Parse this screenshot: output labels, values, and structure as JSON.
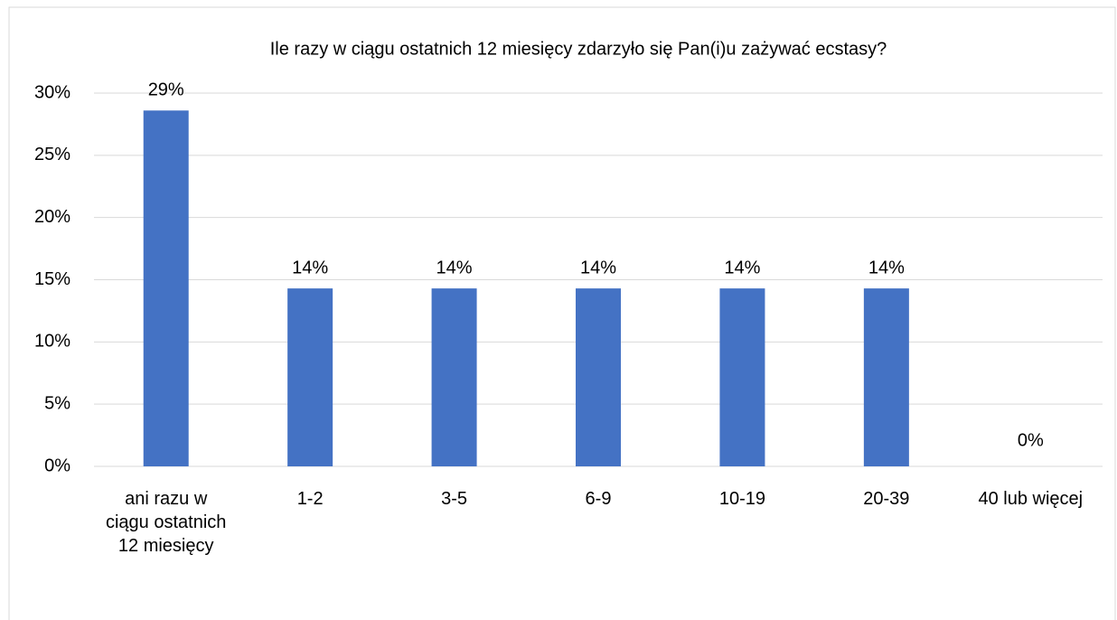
{
  "chart_data": {
    "type": "bar",
    "title": "Ile razy w ciągu ostatnich 12 miesięcy zdarzyło się Pan(i)u zażywać ecstasy?",
    "categories": [
      "ani razu w ciągu ostatnich 12 miesięcy",
      "1-2",
      "3-5",
      "6-9",
      "10-19",
      "20-39",
      "40 lub więcej"
    ],
    "values": [
      28.6,
      14.3,
      14.3,
      14.3,
      14.3,
      14.3,
      0
    ],
    "value_labels": [
      "29%",
      "14%",
      "14%",
      "14%",
      "14%",
      "14%",
      "0%"
    ],
    "color": "#4472c4",
    "ylim": [
      0,
      30
    ],
    "yticks": [
      {
        "value": 0,
        "label": "0%"
      },
      {
        "value": 5,
        "label": "5%"
      },
      {
        "value": 10,
        "label": "10%"
      },
      {
        "value": 15,
        "label": "15%"
      },
      {
        "value": 20,
        "label": "20%"
      },
      {
        "value": 25,
        "label": "25%"
      },
      {
        "value": 30,
        "label": "30%"
      }
    ],
    "grid": true
  }
}
